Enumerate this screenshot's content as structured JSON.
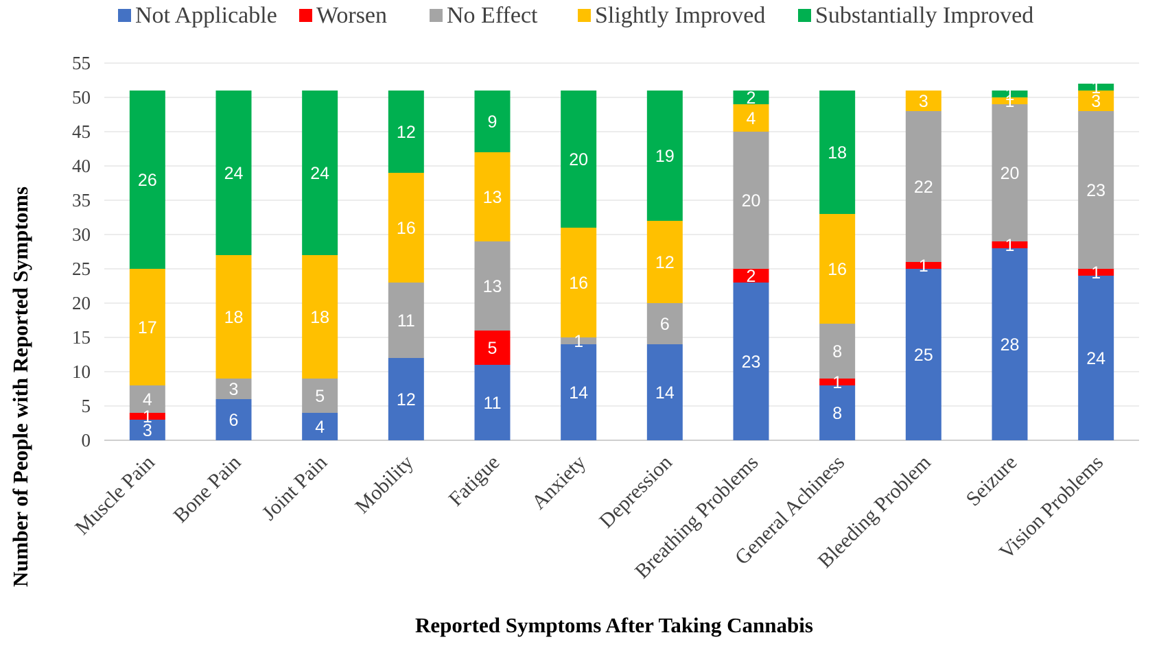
{
  "chart_data": {
    "type": "bar",
    "stacked": true,
    "title": "",
    "xlabel": "Reported Symptoms After Taking Cannabis",
    "ylabel": "Number of People with Reported Symptoms",
    "ylim": [
      0,
      55
    ],
    "y_ticks": [
      0,
      5,
      10,
      15,
      20,
      25,
      30,
      35,
      40,
      45,
      50,
      55
    ],
    "grid": "horizontal",
    "legend_position": "top",
    "categories": [
      "Muscle Pain",
      "Bone Pain",
      "Joint Pain",
      "Mobility",
      "Fatigue",
      "Anxiety",
      "Depression",
      "Breathing Problems",
      "General Achiness",
      "Bleeding Problem",
      "Seizure",
      "Vision Problems"
    ],
    "series": [
      {
        "name": "Not Applicable",
        "color": "#4472C4",
        "values": [
          3,
          6,
          4,
          12,
          11,
          14,
          14,
          23,
          8,
          25,
          28,
          24
        ]
      },
      {
        "name": "Worsen",
        "color": "#FF0000",
        "values": [
          1,
          0,
          0,
          0,
          5,
          0,
          0,
          2,
          1,
          1,
          1,
          1
        ]
      },
      {
        "name": "No Effect",
        "color": "#A5A5A5",
        "values": [
          4,
          3,
          5,
          11,
          13,
          1,
          6,
          20,
          8,
          22,
          20,
          23
        ]
      },
      {
        "name": "Slightly Improved",
        "color": "#FFC000",
        "values": [
          17,
          18,
          18,
          16,
          13,
          16,
          12,
          4,
          16,
          3,
          1,
          3
        ]
      },
      {
        "name": "Substantially Improved",
        "color": "#00B050",
        "values": [
          26,
          24,
          24,
          12,
          9,
          20,
          19,
          2,
          18,
          0,
          1,
          1
        ]
      }
    ]
  }
}
